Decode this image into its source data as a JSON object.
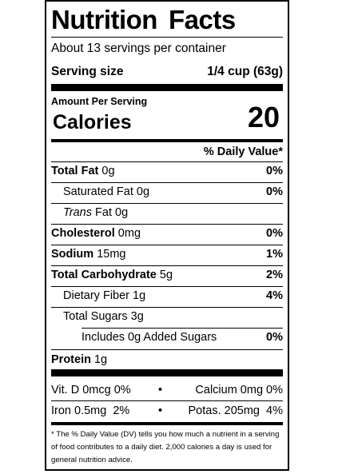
{
  "title": [
    "Nutrition",
    "Facts"
  ],
  "servings_per_container": "About 13 servings per container",
  "serving_size": {
    "label": "Serving size",
    "value": "1/4 cup (63g)"
  },
  "amount_per_serving": "Amount Per Serving",
  "calories": {
    "label": "Calories",
    "value": "20"
  },
  "daily_value_header": "% Daily Value*",
  "nutrients": [
    {
      "name": "Total Fat",
      "amount": "0g",
      "dv": "0%"
    },
    {
      "name": "Saturated Fat",
      "amount": "0g",
      "dv": "0%"
    },
    {
      "name": "Trans",
      "suffix": "Fat",
      "amount": "0g",
      "dv": ""
    },
    {
      "name": "Cholesterol",
      "amount": "0mg",
      "dv": "0%"
    },
    {
      "name": "Sodium",
      "amount": "15mg",
      "dv": "1%"
    },
    {
      "name": "Total Carbohydrate",
      "amount": "5g",
      "dv": "2%"
    },
    {
      "name": "Dietary Fiber",
      "amount": "1g",
      "dv": "4%"
    },
    {
      "name": "Total Sugars",
      "amount": "3g",
      "dv": ""
    },
    {
      "name": "Includes 0g Added Sugars",
      "amount": "",
      "dv": "0%"
    },
    {
      "name": "Protein",
      "amount": "1g",
      "dv": ""
    }
  ],
  "vitamins": [
    {
      "left": "Vit. D 0mcg 0%",
      "bullet": "•",
      "right": "Calcium 0mg 0%"
    },
    {
      "left": "Iron 0.5mg  2%",
      "bullet": "•",
      "right": "Potas. 205mg  4%"
    }
  ],
  "footnote": "* The % Daily Value (DV) tells you how much a nutrient in a serving of food contributes to a daily diet. 2,000 calories a day is used for general nutrition advice."
}
